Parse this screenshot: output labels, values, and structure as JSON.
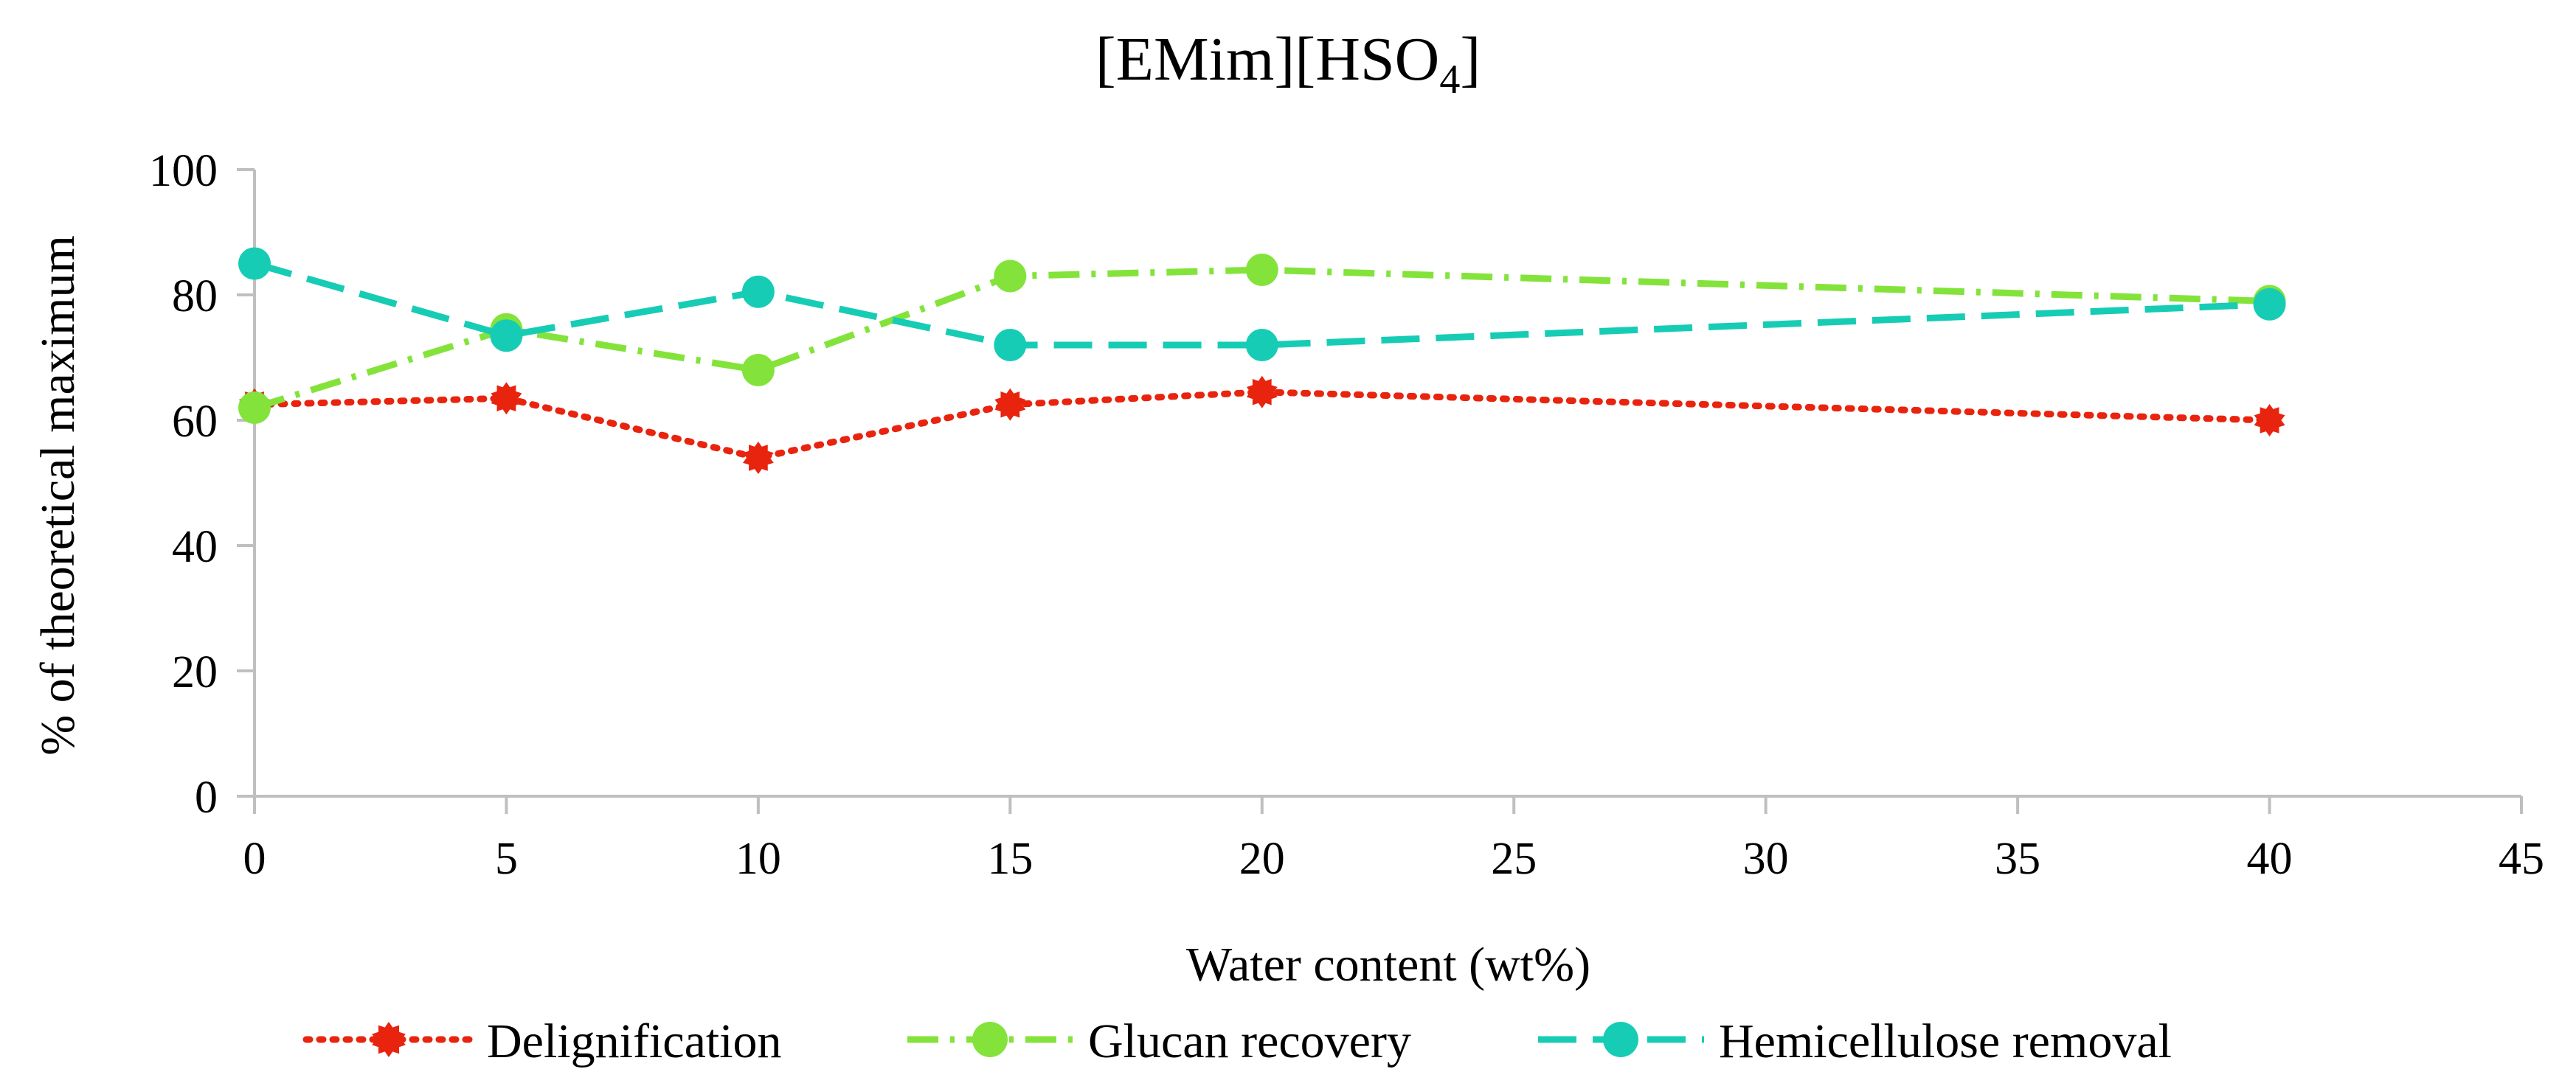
{
  "chart_data": {
    "type": "line",
    "title": "[EMim][HSO",
    "title_subscript": "4",
    "title_suffix": "]",
    "xlabel": "Water content (wt%)",
    "ylabel": "% of theoretical maximum",
    "xlim": [
      0,
      45
    ],
    "ylim": [
      0,
      100
    ],
    "x_ticks": [
      0,
      5,
      10,
      15,
      20,
      25,
      30,
      35,
      40,
      45
    ],
    "y_ticks": [
      0,
      20,
      40,
      60,
      80,
      100
    ],
    "grid": false,
    "legend_position": "bottom",
    "series": [
      {
        "name": "Delignification",
        "color": "#e8240f",
        "line_style": "dotted",
        "marker": "gear",
        "x": [
          0,
          5,
          10,
          15,
          20,
          40
        ],
        "values": [
          62.5,
          63.5,
          54,
          62.5,
          64.5,
          60
        ]
      },
      {
        "name": "Glucan recovery",
        "color": "#83e33b",
        "line_style": "dash-dot",
        "marker": "circle",
        "x": [
          0,
          5,
          10,
          15,
          20,
          40
        ],
        "values": [
          62,
          74.5,
          68,
          83,
          84,
          79
        ]
      },
      {
        "name": "Hemicellulose removal",
        "color": "#17ccb4",
        "line_style": "dashed",
        "marker": "circle",
        "x": [
          0,
          5,
          10,
          15,
          20,
          40
        ],
        "values": [
          85,
          73.5,
          80.5,
          72,
          72,
          78.5
        ]
      }
    ]
  }
}
